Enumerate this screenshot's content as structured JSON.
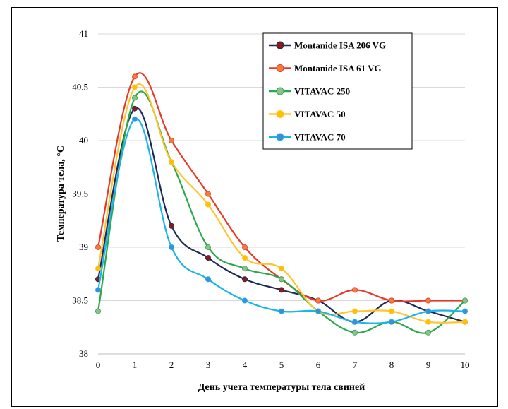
{
  "chart_data": {
    "type": "line",
    "xlabel": "День учета температуры тела свиней",
    "ylabel": "Температура тела, °С",
    "x": [
      0,
      1,
      2,
      3,
      4,
      5,
      6,
      7,
      8,
      9,
      10
    ],
    "xlim": [
      0,
      10
    ],
    "ylim": [
      38,
      41
    ],
    "yticks": [
      38,
      38.5,
      39,
      39.5,
      40,
      40.5,
      41
    ],
    "ytick_labels": [
      "38",
      "38.5",
      "39",
      "39.5",
      "40",
      "40.5",
      "41"
    ],
    "xtick_labels": [
      "0",
      "1",
      "2",
      "3",
      "4",
      "5",
      "6",
      "7",
      "8",
      "9",
      "10"
    ],
    "grid": "horizontal",
    "legend_position": "top-right",
    "series": [
      {
        "name": "Montanide ISA 206 VG",
        "color": "#1f2a56",
        "marker": "#8b1a1a",
        "values": [
          38.7,
          40.3,
          39.2,
          38.9,
          38.7,
          38.6,
          38.5,
          38.3,
          38.5,
          38.4,
          38.3
        ]
      },
      {
        "name": "Montanide ISA 61 VG",
        "color": "#e8382a",
        "marker": "#f07f3c",
        "values": [
          39.0,
          40.6,
          40.0,
          39.5,
          39.0,
          38.7,
          38.5,
          38.6,
          38.5,
          38.5,
          38.5
        ]
      },
      {
        "name": "VITAVAC 250",
        "color": "#2aa84a",
        "marker": "#8fbf8f",
        "values": [
          38.4,
          40.4,
          39.8,
          39.0,
          38.8,
          38.7,
          38.4,
          38.2,
          38.3,
          38.2,
          38.5
        ]
      },
      {
        "name": "VITAVAC 50",
        "color": "#ffc52e",
        "marker": "#ffc000",
        "values": [
          38.8,
          40.5,
          39.8,
          39.4,
          38.9,
          38.8,
          38.4,
          38.4,
          38.4,
          38.3,
          38.3
        ]
      },
      {
        "name": "VITAVAC 70",
        "color": "#19b4e8",
        "marker": "#3a8fd6",
        "values": [
          38.6,
          40.2,
          39.0,
          38.7,
          38.5,
          38.4,
          38.4,
          38.3,
          38.3,
          38.4,
          38.4
        ]
      }
    ]
  }
}
